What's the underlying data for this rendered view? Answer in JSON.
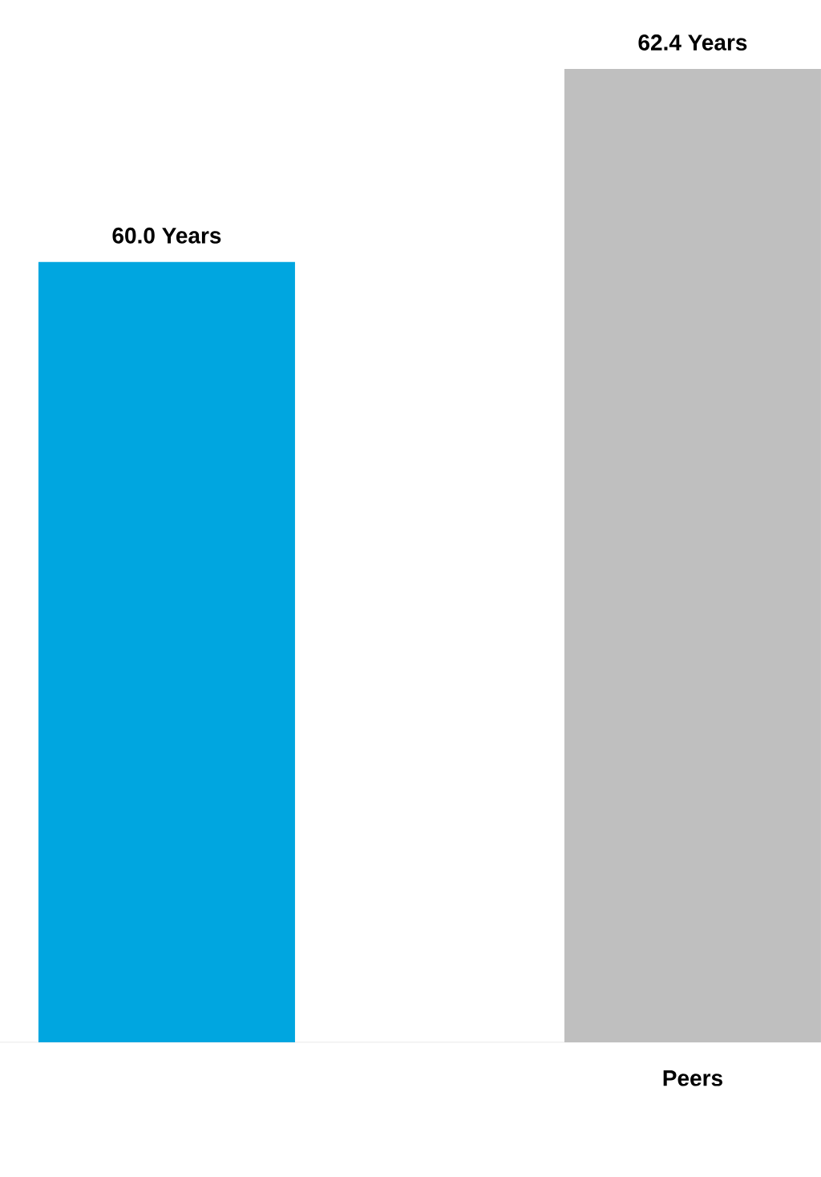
{
  "chart_data": {
    "type": "bar",
    "categories": [
      null,
      "Peers"
    ],
    "values": [
      60.0,
      62.4
    ],
    "value_labels": [
      "60.0 Years",
      "62.4 Years"
    ],
    "colors": [
      "#00a6e0",
      "#bfbfbf"
    ],
    "ylim": [
      50.3,
      62.4
    ]
  }
}
